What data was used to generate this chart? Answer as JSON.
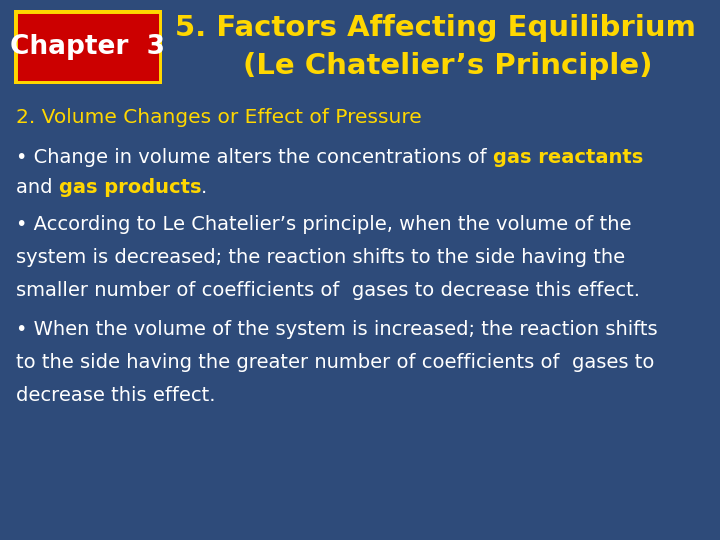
{
  "bg_color": "#2E4B7A",
  "chapter_box_bg": "#CC0000",
  "chapter_box_border": "#FFD700",
  "chapter_text": "Chapter  3",
  "chapter_text_color": "#FFFFFF",
  "title_text_line1": "5. Factors Affecting Equilibrium",
  "title_text_line2": "(Le Chatelier’s Principle)",
  "title_color": "#FFD700",
  "subtitle_color": "#FFD700",
  "subtitle": "2. Volume Changes or Effect of Pressure",
  "body_color": "#FFFFFF",
  "highlight_color": "#FFD700",
  "font_size_title": 21,
  "font_size_chapter": 19,
  "font_size_subtitle": 14.5,
  "font_size_body": 14
}
